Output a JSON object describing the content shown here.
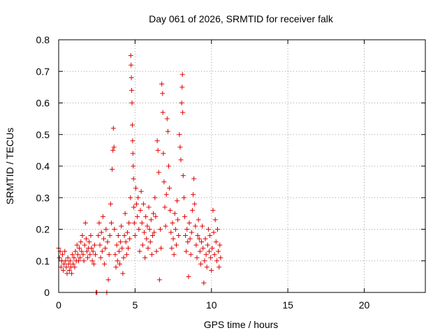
{
  "chart_data": {
    "type": "scatter",
    "title": "Day 061 of 2026, SRMTID for receiver falk",
    "xlabel": "GPS time / hours",
    "ylabel": "SRMTID / TECUs",
    "xlim": [
      0,
      24
    ],
    "ylim": [
      0,
      0.8
    ],
    "x_ticks": [
      0,
      5,
      10,
      15,
      20
    ],
    "x_tick_labels": [
      "0",
      "5",
      "10",
      "15",
      "20"
    ],
    "y_ticks": [
      0,
      0.1,
      0.2,
      0.3,
      0.4,
      0.5,
      0.6,
      0.7,
      0.8
    ],
    "y_tick_labels": [
      "0",
      "0.1",
      "0.2",
      "0.3",
      "0.4",
      "0.5",
      "0.6",
      "0.7",
      "0.8"
    ],
    "grid": true,
    "marker": "+",
    "color": "#e00000",
    "series": [
      {
        "name": "SRMTID",
        "points": [
          [
            0.0,
            0.14
          ],
          [
            0.05,
            0.11
          ],
          [
            0.1,
            0.13
          ],
          [
            0.15,
            0.08
          ],
          [
            0.2,
            0.1
          ],
          [
            0.25,
            0.12
          ],
          [
            0.3,
            0.07
          ],
          [
            0.35,
            0.09
          ],
          [
            0.4,
            0.13
          ],
          [
            0.45,
            0.1
          ],
          [
            0.5,
            0.08
          ],
          [
            0.55,
            0.06
          ],
          [
            0.6,
            0.11
          ],
          [
            0.65,
            0.09
          ],
          [
            0.7,
            0.07
          ],
          [
            0.75,
            0.1
          ],
          [
            0.8,
            0.08
          ],
          [
            0.85,
            0.06
          ],
          [
            0.9,
            0.12
          ],
          [
            0.95,
            0.09
          ],
          [
            1.0,
            0.11
          ],
          [
            1.05,
            0.08
          ],
          [
            1.1,
            0.13
          ],
          [
            1.15,
            0.1
          ],
          [
            1.2,
            0.15
          ],
          [
            1.25,
            0.12
          ],
          [
            1.3,
            0.1
          ],
          [
            1.35,
            0.14
          ],
          [
            1.4,
            0.11
          ],
          [
            1.45,
            0.16
          ],
          [
            1.5,
            0.13
          ],
          [
            1.55,
            0.18
          ],
          [
            1.6,
            0.12
          ],
          [
            1.65,
            0.1
          ],
          [
            1.7,
            0.15
          ],
          [
            1.75,
            0.22
          ],
          [
            1.8,
            0.17
          ],
          [
            1.85,
            0.13
          ],
          [
            1.9,
            0.11
          ],
          [
            1.95,
            0.14
          ],
          [
            2.0,
            0.16
          ],
          [
            2.05,
            0.12
          ],
          [
            2.1,
            0.18
          ],
          [
            2.15,
            0.14
          ],
          [
            2.2,
            0.1
          ],
          [
            2.25,
            0.13
          ],
          [
            2.3,
            0.09
          ],
          [
            2.35,
            0.15
          ],
          [
            2.4,
            0.12
          ],
          [
            2.45,
            0.0
          ],
          [
            2.5,
            0.0
          ],
          [
            2.6,
            0.18
          ],
          [
            2.65,
            0.22
          ],
          [
            2.7,
            0.15
          ],
          [
            2.75,
            0.11
          ],
          [
            2.8,
            0.19
          ],
          [
            2.85,
            0.13
          ],
          [
            2.9,
            0.24
          ],
          [
            2.95,
            0.17
          ],
          [
            3.0,
            0.09
          ],
          [
            3.05,
            0.14
          ],
          [
            3.1,
            0.2
          ],
          [
            3.15,
            0.0
          ],
          [
            3.2,
            0.16
          ],
          [
            3.25,
            0.04
          ],
          [
            3.3,
            0.12
          ],
          [
            3.35,
            0.18
          ],
          [
            3.4,
            0.28
          ],
          [
            3.45,
            0.22
          ],
          [
            3.5,
            0.39
          ],
          [
            3.55,
            0.45
          ],
          [
            3.58,
            0.52
          ],
          [
            3.62,
            0.46
          ],
          [
            3.65,
            0.2
          ],
          [
            3.7,
            0.12
          ],
          [
            3.75,
            0.08
          ],
          [
            3.8,
            0.15
          ],
          [
            3.85,
            0.1
          ],
          [
            3.9,
            0.18
          ],
          [
            3.95,
            0.13
          ],
          [
            4.0,
            0.09
          ],
          [
            4.05,
            0.16
          ],
          [
            4.1,
            0.21
          ],
          [
            4.15,
            0.14
          ],
          [
            4.2,
            0.06
          ],
          [
            4.25,
            0.11
          ],
          [
            4.3,
            0.18
          ],
          [
            4.35,
            0.25
          ],
          [
            4.4,
            0.16
          ],
          [
            4.45,
            0.12
          ],
          [
            4.5,
            0.19
          ],
          [
            4.55,
            0.14
          ],
          [
            4.6,
            0.22
          ],
          [
            4.65,
            0.17
          ],
          [
            4.7,
            0.3
          ],
          [
            4.72,
            0.75
          ],
          [
            4.74,
            0.72
          ],
          [
            4.76,
            0.68
          ],
          [
            4.78,
            0.64
          ],
          [
            4.8,
            0.6
          ],
          [
            4.82,
            0.53
          ],
          [
            4.84,
            0.48
          ],
          [
            4.86,
            0.44
          ],
          [
            4.88,
            0.4
          ],
          [
            4.9,
            0.36
          ],
          [
            4.92,
            0.27
          ],
          [
            4.95,
            0.22
          ],
          [
            5.0,
            0.18
          ],
          [
            5.05,
            0.33
          ],
          [
            5.1,
            0.28
          ],
          [
            5.15,
            0.24
          ],
          [
            5.2,
            0.3
          ],
          [
            5.25,
            0.2
          ],
          [
            5.3,
            0.13
          ],
          [
            5.35,
            0.26
          ],
          [
            5.4,
            0.32
          ],
          [
            5.45,
            0.22
          ],
          [
            5.5,
            0.15
          ],
          [
            5.55,
            0.28
          ],
          [
            5.6,
            0.19
          ],
          [
            5.65,
            0.11
          ],
          [
            5.7,
            0.24
          ],
          [
            5.75,
            0.17
          ],
          [
            5.8,
            0.21
          ],
          [
            5.85,
            0.14
          ],
          [
            5.9,
            0.27
          ],
          [
            5.95,
            0.2
          ],
          [
            6.0,
            0.16
          ],
          [
            6.05,
            0.23
          ],
          [
            6.1,
            0.12
          ],
          [
            6.15,
            0.18
          ],
          [
            6.2,
            0.25
          ],
          [
            6.25,
            0.19
          ],
          [
            6.3,
            0.3
          ],
          [
            6.35,
            0.24
          ],
          [
            6.4,
            0.13
          ],
          [
            6.45,
            0.48
          ],
          [
            6.5,
            0.45
          ],
          [
            6.55,
            0.38
          ],
          [
            6.6,
            0.04
          ],
          [
            6.65,
            0.2
          ],
          [
            6.7,
            0.14
          ],
          [
            6.75,
            0.66
          ],
          [
            6.8,
            0.63
          ],
          [
            6.82,
            0.57
          ],
          [
            6.85,
            0.44
          ],
          [
            6.9,
            0.35
          ],
          [
            6.95,
            0.27
          ],
          [
            7.0,
            0.21
          ],
          [
            7.05,
            0.31
          ],
          [
            7.1,
            0.55
          ],
          [
            7.15,
            0.51
          ],
          [
            7.2,
            0.4
          ],
          [
            7.25,
            0.33
          ],
          [
            7.3,
            0.26
          ],
          [
            7.35,
            0.19
          ],
          [
            7.4,
            0.14
          ],
          [
            7.45,
            0.22
          ],
          [
            7.5,
            0.17
          ],
          [
            7.55,
            0.12
          ],
          [
            7.6,
            0.25
          ],
          [
            7.65,
            0.2
          ],
          [
            7.7,
            0.15
          ],
          [
            7.75,
            0.29
          ],
          [
            7.8,
            0.23
          ],
          [
            7.85,
            0.18
          ],
          [
            7.9,
            0.5
          ],
          [
            7.95,
            0.46
          ],
          [
            8.0,
            0.42
          ],
          [
            8.05,
            0.6
          ],
          [
            8.08,
            0.65
          ],
          [
            8.1,
            0.69
          ],
          [
            8.12,
            0.57
          ],
          [
            8.15,
            0.37
          ],
          [
            8.2,
            0.3
          ],
          [
            8.25,
            0.24
          ],
          [
            8.3,
            0.18
          ],
          [
            8.35,
            0.13
          ],
          [
            8.4,
            0.2
          ],
          [
            8.45,
            0.16
          ],
          [
            8.5,
            0.05
          ],
          [
            8.55,
            0.22
          ],
          [
            8.6,
            0.17
          ],
          [
            8.65,
            0.12
          ],
          [
            8.7,
            0.19
          ],
          [
            8.75,
            0.26
          ],
          [
            8.8,
            0.31
          ],
          [
            8.85,
            0.36
          ],
          [
            8.9,
            0.28
          ],
          [
            8.95,
            0.21
          ],
          [
            9.0,
            0.15
          ],
          [
            9.05,
            0.11
          ],
          [
            9.1,
            0.18
          ],
          [
            9.15,
            0.23
          ],
          [
            9.2,
            0.17
          ],
          [
            9.25,
            0.13
          ],
          [
            9.3,
            0.09
          ],
          [
            9.35,
            0.16
          ],
          [
            9.4,
            0.21
          ],
          [
            9.45,
            0.14
          ],
          [
            9.5,
            0.03
          ],
          [
            9.55,
            0.1
          ],
          [
            9.6,
            0.17
          ],
          [
            9.65,
            0.12
          ],
          [
            9.7,
            0.08
          ],
          [
            9.75,
            0.15
          ],
          [
            9.8,
            0.2
          ],
          [
            9.85,
            0.13
          ],
          [
            9.9,
            0.18
          ],
          [
            9.95,
            0.11
          ],
          [
            10.0,
            0.07
          ],
          [
            10.05,
            0.14
          ],
          [
            10.1,
            0.26
          ],
          [
            10.15,
            0.19
          ],
          [
            10.2,
            0.12
          ],
          [
            10.25,
            0.23
          ],
          [
            10.3,
            0.16
          ],
          [
            10.35,
            0.1
          ],
          [
            10.4,
            0.2
          ],
          [
            10.45,
            0.13
          ],
          [
            10.5,
            0.08
          ],
          [
            10.55,
            0.15
          ],
          [
            10.6,
            0.11
          ]
        ]
      }
    ]
  }
}
